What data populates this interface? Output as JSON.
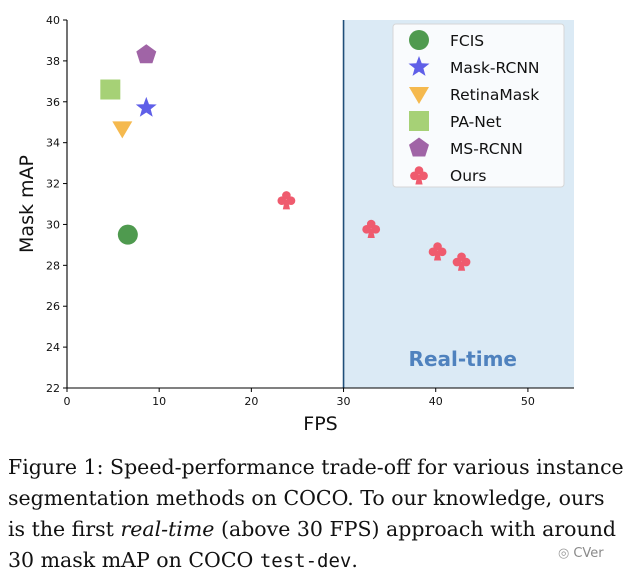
{
  "chart_data": {
    "type": "scatter",
    "xlabel": "FPS",
    "ylabel": "Mask mAP",
    "xlim": [
      0,
      55
    ],
    "ylim": [
      22,
      40
    ],
    "x_ticks": [
      0,
      10,
      20,
      30,
      40,
      50
    ],
    "y_ticks": [
      22,
      24,
      26,
      28,
      30,
      32,
      34,
      36,
      38,
      40
    ],
    "grid": false,
    "legend_position": "top-right",
    "region": {
      "label": "Real-time",
      "x_from": 30,
      "x_to": 55,
      "color": "#dbeaf5",
      "text_color": "#4f82be"
    },
    "series": [
      {
        "name": "FCIS",
        "marker": "circle",
        "color": "#4f9a4f",
        "points": [
          {
            "x": 6.6,
            "y": 29.5
          }
        ]
      },
      {
        "name": "Mask-RCNN",
        "marker": "star",
        "color": "#5f5fe8",
        "points": [
          {
            "x": 8.6,
            "y": 35.7
          }
        ]
      },
      {
        "name": "RetinaMask",
        "marker": "triangle-down",
        "color": "#f5b94e",
        "points": [
          {
            "x": 6.0,
            "y": 34.7
          }
        ]
      },
      {
        "name": "PA-Net",
        "marker": "square",
        "color": "#a6d176",
        "points": [
          {
            "x": 4.7,
            "y": 36.6
          }
        ]
      },
      {
        "name": "MS-RCNN",
        "marker": "pentagon",
        "color": "#a064a6",
        "points": [
          {
            "x": 8.6,
            "y": 38.3
          }
        ]
      },
      {
        "name": "Ours",
        "marker": "club",
        "color": "#ef5b6e",
        "points": [
          {
            "x": 23.8,
            "y": 31.2
          },
          {
            "x": 33.0,
            "y": 29.8
          },
          {
            "x": 40.2,
            "y": 28.7
          },
          {
            "x": 42.8,
            "y": 28.2
          }
        ]
      }
    ]
  },
  "caption": {
    "line1": "Figure 1: Speed-performance trade-off for various instance",
    "line2": "segmentation methods on COCO. To our knowledge, ours",
    "line3_before": "is the first ",
    "line3_em": "real-time",
    "line3_after": " (above 30 FPS) approach with around",
    "line4_before": "30 mask mAP on COCO ",
    "line4_code": "test-dev",
    "line4_after": "."
  },
  "watermark": {
    "text": "CVer",
    "icon": "wechat-icon"
  }
}
